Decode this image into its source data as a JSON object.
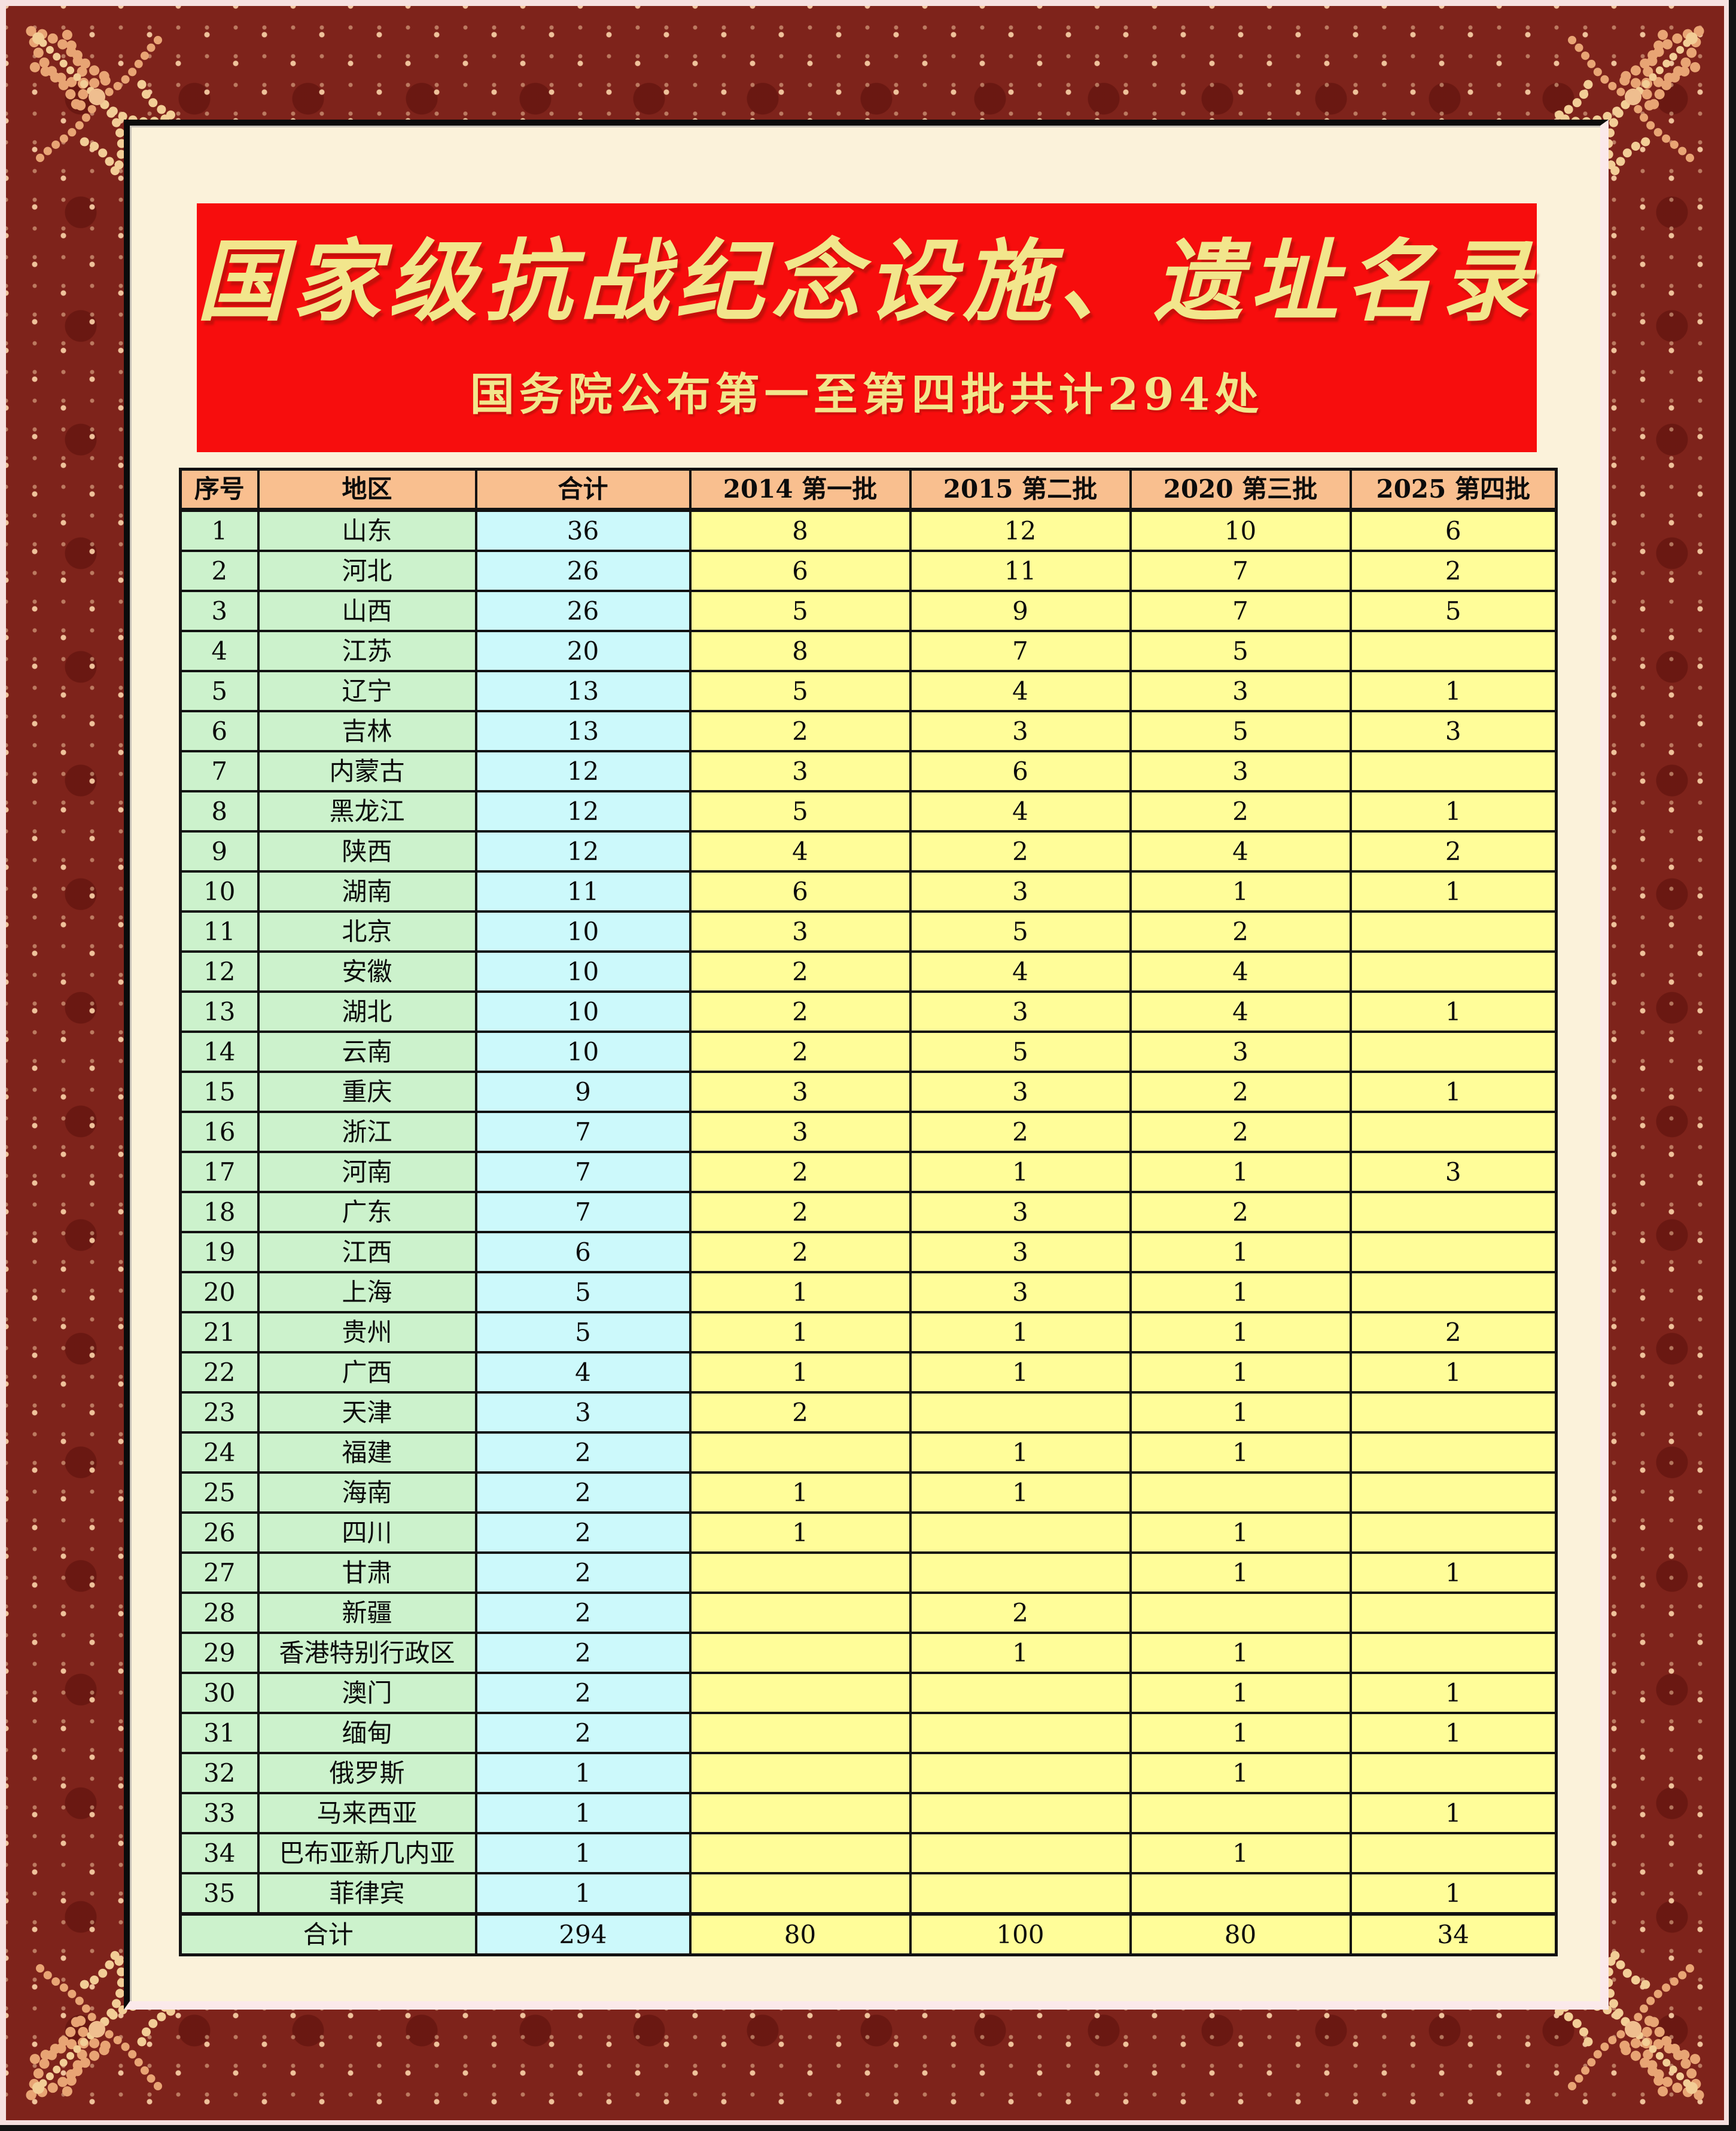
{
  "banner": {
    "title": "国家级抗战纪念设施、遗址名录",
    "subtitle": "国务院公布第一至第四批共计294处",
    "bg_color": "#F70D0D",
    "text_color": "#F2E68C"
  },
  "frame": {
    "base_color": "#7E231B",
    "dot_color": "#EFC29B",
    "ornament_color": "#E8A474",
    "ornament_highlight": "#F2CD96",
    "outer_edge_color": "#F6E1E0",
    "panel_color": "#FBF2DA"
  },
  "table": {
    "header_bg": "#F9BF8F",
    "columns": [
      {
        "key": "no",
        "label": "序号",
        "bg": "#CCF2CC"
      },
      {
        "key": "region",
        "label": "地区",
        "bg": "#CCF2CC"
      },
      {
        "key": "total",
        "label": "合计",
        "bg": "#CCF9FB"
      },
      {
        "key": "b2014",
        "label": "2014 第一批",
        "bg": "#FFFD99"
      },
      {
        "key": "b2015",
        "label": "2015 第二批",
        "bg": "#FFFD99"
      },
      {
        "key": "b2020",
        "label": "2020 第三批",
        "bg": "#FFFD99"
      },
      {
        "key": "b2025",
        "label": "2025 第四批",
        "bg": "#FFFD99"
      }
    ],
    "rows": [
      {
        "no": "1",
        "region": "山东",
        "total": "36",
        "b2014": "8",
        "b2015": "12",
        "b2020": "10",
        "b2025": "6"
      },
      {
        "no": "2",
        "region": "河北",
        "total": "26",
        "b2014": "6",
        "b2015": "11",
        "b2020": "7",
        "b2025": "2"
      },
      {
        "no": "3",
        "region": "山西",
        "total": "26",
        "b2014": "5",
        "b2015": "9",
        "b2020": "7",
        "b2025": "5"
      },
      {
        "no": "4",
        "region": "江苏",
        "total": "20",
        "b2014": "8",
        "b2015": "7",
        "b2020": "5",
        "b2025": ""
      },
      {
        "no": "5",
        "region": "辽宁",
        "total": "13",
        "b2014": "5",
        "b2015": "4",
        "b2020": "3",
        "b2025": "1"
      },
      {
        "no": "6",
        "region": "吉林",
        "total": "13",
        "b2014": "2",
        "b2015": "3",
        "b2020": "5",
        "b2025": "3"
      },
      {
        "no": "7",
        "region": "内蒙古",
        "total": "12",
        "b2014": "3",
        "b2015": "6",
        "b2020": "3",
        "b2025": ""
      },
      {
        "no": "8",
        "region": "黑龙江",
        "total": "12",
        "b2014": "5",
        "b2015": "4",
        "b2020": "2",
        "b2025": "1"
      },
      {
        "no": "9",
        "region": "陕西",
        "total": "12",
        "b2014": "4",
        "b2015": "2",
        "b2020": "4",
        "b2025": "2"
      },
      {
        "no": "10",
        "region": "湖南",
        "total": "11",
        "b2014": "6",
        "b2015": "3",
        "b2020": "1",
        "b2025": "1"
      },
      {
        "no": "11",
        "region": "北京",
        "total": "10",
        "b2014": "3",
        "b2015": "5",
        "b2020": "2",
        "b2025": ""
      },
      {
        "no": "12",
        "region": "安徽",
        "total": "10",
        "b2014": "2",
        "b2015": "4",
        "b2020": "4",
        "b2025": ""
      },
      {
        "no": "13",
        "region": "湖北",
        "total": "10",
        "b2014": "2",
        "b2015": "3",
        "b2020": "4",
        "b2025": "1"
      },
      {
        "no": "14",
        "region": "云南",
        "total": "10",
        "b2014": "2",
        "b2015": "5",
        "b2020": "3",
        "b2025": ""
      },
      {
        "no": "15",
        "region": "重庆",
        "total": "9",
        "b2014": "3",
        "b2015": "3",
        "b2020": "2",
        "b2025": "1"
      },
      {
        "no": "16",
        "region": "浙江",
        "total": "7",
        "b2014": "3",
        "b2015": "2",
        "b2020": "2",
        "b2025": ""
      },
      {
        "no": "17",
        "region": "河南",
        "total": "7",
        "b2014": "2",
        "b2015": "1",
        "b2020": "1",
        "b2025": "3"
      },
      {
        "no": "18",
        "region": "广东",
        "total": "7",
        "b2014": "2",
        "b2015": "3",
        "b2020": "2",
        "b2025": ""
      },
      {
        "no": "19",
        "region": "江西",
        "total": "6",
        "b2014": "2",
        "b2015": "3",
        "b2020": "1",
        "b2025": ""
      },
      {
        "no": "20",
        "region": "上海",
        "total": "5",
        "b2014": "1",
        "b2015": "3",
        "b2020": "1",
        "b2025": ""
      },
      {
        "no": "21",
        "region": "贵州",
        "total": "5",
        "b2014": "1",
        "b2015": "1",
        "b2020": "1",
        "b2025": "2"
      },
      {
        "no": "22",
        "region": "广西",
        "total": "4",
        "b2014": "1",
        "b2015": "1",
        "b2020": "1",
        "b2025": "1"
      },
      {
        "no": "23",
        "region": "天津",
        "total": "3",
        "b2014": "2",
        "b2015": "",
        "b2020": "1",
        "b2025": ""
      },
      {
        "no": "24",
        "region": "福建",
        "total": "2",
        "b2014": "",
        "b2015": "1",
        "b2020": "1",
        "b2025": ""
      },
      {
        "no": "25",
        "region": "海南",
        "total": "2",
        "b2014": "1",
        "b2015": "1",
        "b2020": "",
        "b2025": ""
      },
      {
        "no": "26",
        "region": "四川",
        "total": "2",
        "b2014": "1",
        "b2015": "",
        "b2020": "1",
        "b2025": ""
      },
      {
        "no": "27",
        "region": "甘肃",
        "total": "2",
        "b2014": "",
        "b2015": "",
        "b2020": "1",
        "b2025": "1"
      },
      {
        "no": "28",
        "region": "新疆",
        "total": "2",
        "b2014": "",
        "b2015": "2",
        "b2020": "",
        "b2025": ""
      },
      {
        "no": "29",
        "region": "香港特别行政区",
        "total": "2",
        "b2014": "",
        "b2015": "1",
        "b2020": "1",
        "b2025": ""
      },
      {
        "no": "30",
        "region": "澳门",
        "total": "2",
        "b2014": "",
        "b2015": "",
        "b2020": "1",
        "b2025": "1"
      },
      {
        "no": "31",
        "region": "缅甸",
        "total": "2",
        "b2014": "",
        "b2015": "",
        "b2020": "1",
        "b2025": "1"
      },
      {
        "no": "32",
        "region": "俄罗斯",
        "total": "1",
        "b2014": "",
        "b2015": "",
        "b2020": "1",
        "b2025": ""
      },
      {
        "no": "33",
        "region": "马来西亚",
        "total": "1",
        "b2014": "",
        "b2015": "",
        "b2020": "",
        "b2025": "1"
      },
      {
        "no": "34",
        "region": "巴布亚新几内亚",
        "total": "1",
        "b2014": "",
        "b2015": "",
        "b2020": "1",
        "b2025": ""
      },
      {
        "no": "35",
        "region": "菲律宾",
        "total": "1",
        "b2014": "",
        "b2015": "",
        "b2020": "",
        "b2025": "1"
      }
    ],
    "footer": {
      "label": "合计",
      "total": "294",
      "b2014": "80",
      "b2015": "100",
      "b2020": "80",
      "b2025": "34"
    }
  }
}
